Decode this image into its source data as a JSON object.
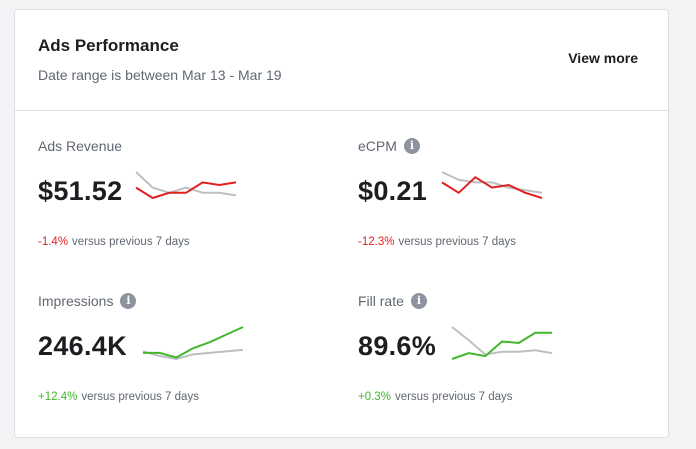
{
  "card": {
    "title": "Ads Performance",
    "subtitle": "Date range is between Mar 13 - Mar 19",
    "view_more": "View more"
  },
  "colors": {
    "negative": "#e02020",
    "positive": "#42b72a",
    "previous_period_line": "#bcc0c4"
  },
  "metrics": [
    {
      "label": "Ads Revenue",
      "has_info": false,
      "value": "$51.52",
      "delta": "-1.4%",
      "trend": "negative",
      "compare_text": "versus previous 7 days",
      "current": [
        6,
        4,
        5,
        5,
        7,
        6.5,
        7
      ],
      "previous": [
        9,
        6,
        5,
        6,
        5,
        5,
        4.5
      ]
    },
    {
      "label": "eCPM",
      "has_info": true,
      "info_icon": "info-icon",
      "value": "$0.21",
      "delta": "-12.3%",
      "trend": "negative",
      "compare_text": "versus previous 7 days",
      "current": [
        6,
        4,
        7,
        5,
        5.5,
        4,
        3
      ],
      "previous": [
        8,
        6.5,
        6,
        6,
        5,
        4.5,
        4
      ]
    },
    {
      "label": "Impressions",
      "has_info": true,
      "info_icon": "info-icon",
      "value": "246.4K",
      "delta": "+12.4%",
      "trend": "positive",
      "compare_text": "versus previous 7 days",
      "current": [
        3,
        3,
        1.5,
        4.5,
        6.5,
        9,
        11.5
      ],
      "previous": [
        3.5,
        2,
        1,
        2.5,
        3,
        3.5,
        4
      ]
    },
    {
      "label": "Fill rate",
      "has_info": true,
      "info_icon": "info-icon",
      "value": "89.6%",
      "delta": "+0.3%",
      "trend": "positive",
      "compare_text": "versus previous 7 days",
      "current": [
        1,
        3,
        2,
        7,
        6.5,
        10,
        10
      ],
      "previous": [
        12,
        7.5,
        2.5,
        3.5,
        3.5,
        4,
        3
      ]
    }
  ]
}
